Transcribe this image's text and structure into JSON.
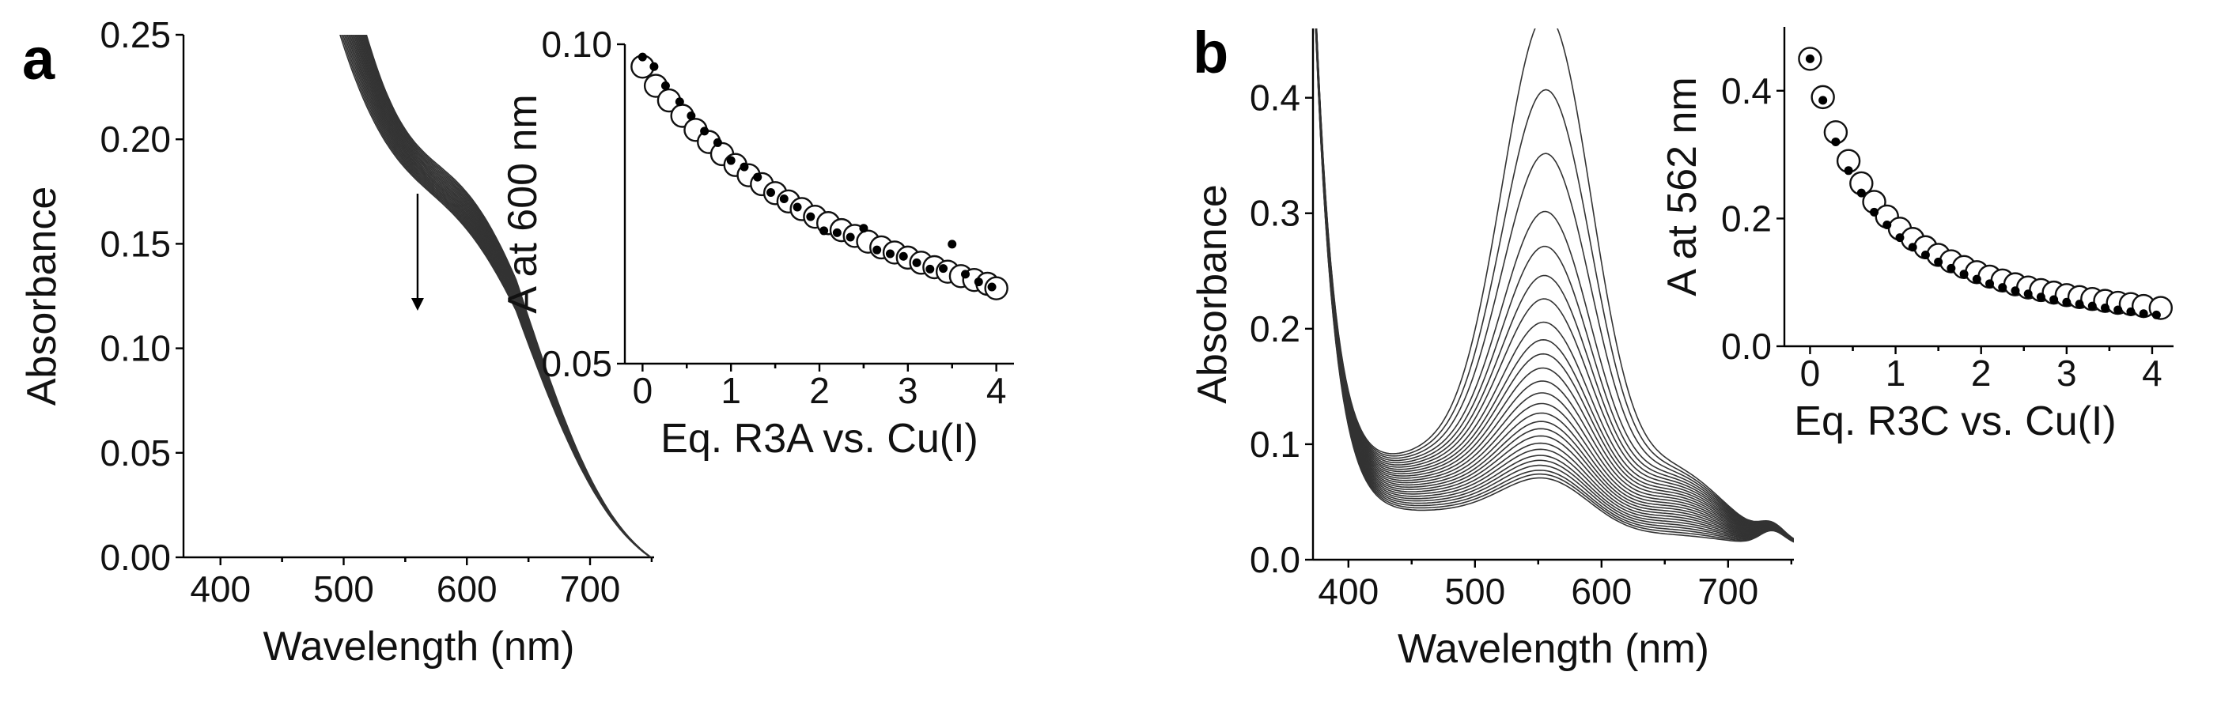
{
  "chart_data": [
    {
      "panel_label": "a",
      "type": "line",
      "title": "",
      "xlabel": "Wavelength (nm)",
      "ylabel": "Absorbance",
      "xlim": [
        370,
        752
      ],
      "ylim": [
        0.0,
        0.25
      ],
      "xticks": [
        400,
        500,
        600,
        700
      ],
      "yticks": [
        0.0,
        0.05,
        0.1,
        0.15,
        0.2,
        0.25
      ],
      "ytick_labels": [
        "0.00",
        "0.05",
        "0.10",
        "0.15",
        "0.20",
        "0.25"
      ],
      "annotation": "downward arrow near 560 nm indicating absorbance decrease",
      "arrow_x_nm": 560,
      "arrow_y_from": 0.174,
      "arrow_y_to": 0.118,
      "series_count": 22,
      "spectrum_params": {
        "first": {
          "uv_height": 0.21,
          "uv_decay_nm": 25,
          "peak470": 0.085,
          "sh_height": 0.093,
          "sh_center": 608,
          "sh_width": 60,
          "floor": 0.012,
          "floor_decay": 0.006
        },
        "last": {
          "uv_height": 0.17,
          "uv_decay_nm": 42,
          "peak470": 0.018,
          "sh_height": 0.075,
          "sh_center": 608,
          "sh_width": 62,
          "floor": 0.012,
          "floor_decay": 0.006
        }
      },
      "inset": {
        "type": "scatter",
        "xlabel": "Eq. R3A vs. Cu(I)",
        "ylabel": "A at 600 nm",
        "xlim": [
          -0.2,
          4.2
        ],
        "ylim": [
          0.05,
          0.1
        ],
        "xticks": [
          0,
          1,
          2,
          3,
          4
        ],
        "yticks": [
          0.05,
          0.1
        ],
        "ytick_labels": [
          "0.05",
          "0.10"
        ],
        "series": [
          {
            "name": "experimental",
            "marker": "filled-dot",
            "x": [
              0.0,
              0.13,
              0.26,
              0.42,
              0.55,
              0.7,
              0.85,
              1.0,
              1.15,
              1.3,
              1.45,
              1.6,
              1.75,
              1.9,
              2.05,
              2.2,
              2.35,
              2.5,
              2.65,
              2.8,
              2.95,
              3.1,
              3.25,
              3.4,
              3.5,
              3.65,
              3.8,
              3.95
            ],
            "y": [
              0.098,
              0.0965,
              0.0935,
              0.091,
              0.0888,
              0.0864,
              0.0846,
              0.0818,
              0.0808,
              0.0792,
              0.0768,
              0.0758,
              0.0745,
              0.073,
              0.0708,
              0.0705,
              0.0698,
              0.0712,
              0.0678,
              0.0672,
              0.0668,
              0.0658,
              0.0648,
              0.0649,
              0.0687,
              0.064,
              0.0628,
              0.062
            ]
          },
          {
            "name": "fit",
            "marker": "open-circle",
            "x": [
              0.0,
              0.15,
              0.3,
              0.45,
              0.6,
              0.75,
              0.9,
              1.05,
              1.2,
              1.35,
              1.5,
              1.65,
              1.8,
              1.95,
              2.1,
              2.25,
              2.4,
              2.55,
              2.7,
              2.85,
              3.0,
              3.15,
              3.3,
              3.45,
              3.6,
              3.75,
              3.9,
              4.0
            ],
            "y": [
              0.0965,
              0.0935,
              0.0912,
              0.0888,
              0.0866,
              0.0847,
              0.0828,
              0.0811,
              0.0795,
              0.0781,
              0.0767,
              0.0754,
              0.0742,
              0.073,
              0.072,
              0.0709,
              0.07,
              0.0691,
              0.0682,
              0.0674,
              0.0666,
              0.0658,
              0.0651,
              0.0644,
              0.0637,
              0.0631,
              0.0625,
              0.0618
            ]
          }
        ]
      }
    },
    {
      "panel_label": "b",
      "type": "line",
      "title": "",
      "xlabel": "Wavelength (nm)",
      "ylabel": "Absorbance",
      "xlim": [
        372,
        752
      ],
      "ylim": [
        0.0,
        0.46
      ],
      "xticks": [
        400,
        500,
        600,
        700
      ],
      "yticks": [
        0.0,
        0.1,
        0.2,
        0.3,
        0.4
      ],
      "ytick_labels": [
        "0.0",
        "0.1",
        "0.2",
        "0.3",
        "0.4"
      ],
      "series_count": 26,
      "peak_wavelength_nm": 558,
      "peak_heights": [
        0.45,
        0.385,
        0.33,
        0.28,
        0.25,
        0.225,
        0.205,
        0.185,
        0.17,
        0.158,
        0.146,
        0.135,
        0.125,
        0.116,
        0.108,
        0.101,
        0.095,
        0.089,
        0.083,
        0.078,
        0.073,
        0.069,
        0.065,
        0.061,
        0.058,
        0.055
      ],
      "spectrum_params": {
        "uv_height": 0.44,
        "uv_decay_nm": 16,
        "base_first": 0.078,
        "base_last": 0.028,
        "shoulder_first": 0.06,
        "shoulder_last": 0.008,
        "peak_width": 36
      },
      "inset": {
        "type": "scatter",
        "xlabel": "Eq. R3C vs. Cu(I)",
        "ylabel": "A at 562 nm",
        "xlim": [
          -0.3,
          4.25
        ],
        "ylim": [
          0.0,
          0.5
        ],
        "xticks": [
          0,
          1,
          2,
          3,
          4
        ],
        "yticks": [
          0.0,
          0.2,
          0.4
        ],
        "ytick_labels": [
          "0.0",
          "0.2",
          "0.4"
        ],
        "series": [
          {
            "name": "experimental",
            "marker": "filled-dot",
            "x": [
              0.0,
              0.15,
              0.3,
              0.45,
              0.6,
              0.75,
              0.9,
              1.05,
              1.2,
              1.35,
              1.5,
              1.65,
              1.8,
              1.95,
              2.1,
              2.25,
              2.4,
              2.55,
              2.7,
              2.85,
              3.0,
              3.15,
              3.3,
              3.45,
              3.6,
              3.75,
              3.9,
              4.05
            ],
            "y": [
              0.45,
              0.385,
              0.32,
              0.275,
              0.24,
              0.21,
              0.19,
              0.17,
              0.155,
              0.143,
              0.132,
              0.122,
              0.113,
              0.105,
              0.098,
              0.092,
              0.087,
              0.082,
              0.077,
              0.073,
              0.069,
              0.066,
              0.063,
              0.06,
              0.057,
              0.054,
              0.051,
              0.049
            ]
          },
          {
            "name": "fit",
            "marker": "open-circle",
            "x": [
              0.0,
              0.15,
              0.3,
              0.45,
              0.6,
              0.75,
              0.9,
              1.05,
              1.2,
              1.35,
              1.5,
              1.65,
              1.8,
              1.95,
              2.1,
              2.25,
              2.4,
              2.55,
              2.7,
              2.85,
              3.0,
              3.15,
              3.3,
              3.45,
              3.6,
              3.75,
              3.9,
              4.1
            ],
            "y": [
              0.45,
              0.39,
              0.335,
              0.29,
              0.255,
              0.226,
              0.203,
              0.184,
              0.168,
              0.155,
              0.143,
              0.133,
              0.124,
              0.116,
              0.109,
              0.103,
              0.097,
              0.092,
              0.088,
              0.084,
              0.08,
              0.077,
              0.074,
              0.071,
              0.068,
              0.066,
              0.063,
              0.06
            ]
          }
        ]
      }
    }
  ]
}
